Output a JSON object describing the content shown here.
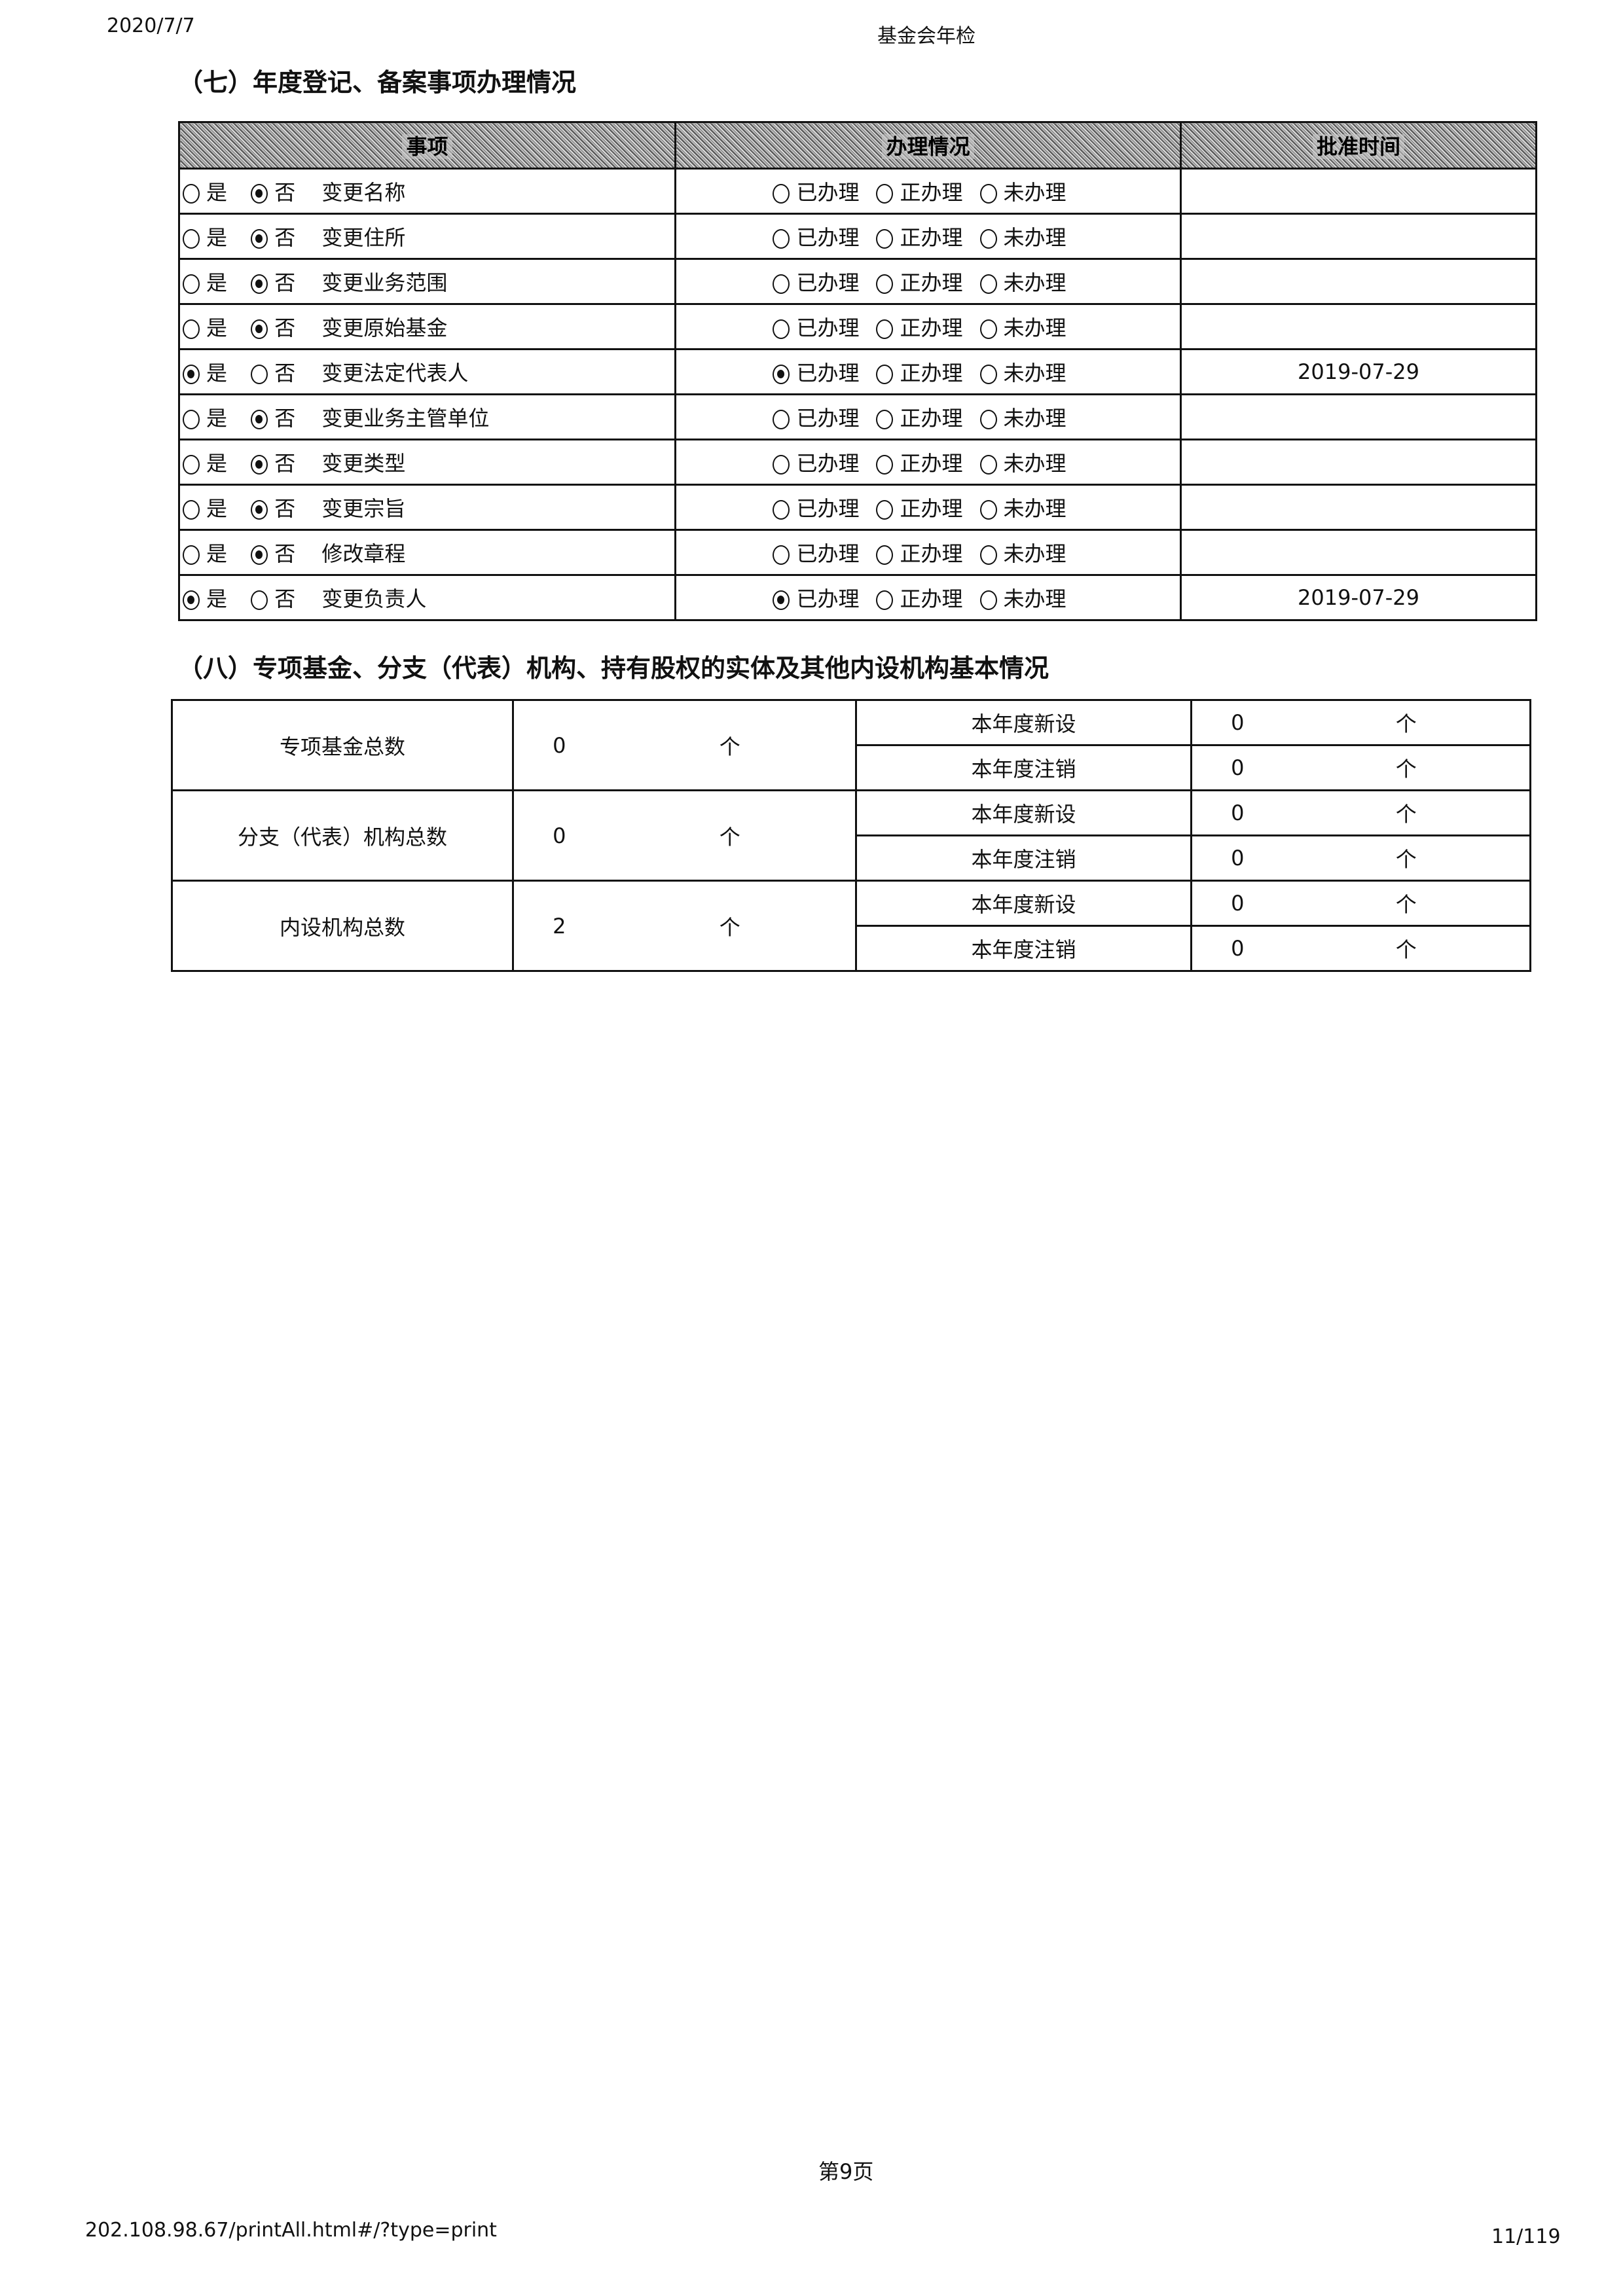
{
  "header": {
    "date": "2020/7/7",
    "title": "基金会年检"
  },
  "section7": {
    "title": "（七）年度登记、备案事项办理情况",
    "columns": [
      "事项",
      "办理情况",
      "批准时间"
    ],
    "yes_label": "是",
    "no_label": "否",
    "status_labels": [
      "已办理",
      "正办理",
      "未办理"
    ],
    "rows": [
      {
        "item": "变更名称",
        "changed": false,
        "status": null,
        "date": ""
      },
      {
        "item": "变更住所",
        "changed": false,
        "status": null,
        "date": ""
      },
      {
        "item": "变更业务范围",
        "changed": false,
        "status": null,
        "date": ""
      },
      {
        "item": "变更原始基金",
        "changed": false,
        "status": null,
        "date": ""
      },
      {
        "item": "变更法定代表人",
        "changed": true,
        "status": "已办理",
        "date": "2019-07-29"
      },
      {
        "item": "变更业务主管单位",
        "changed": false,
        "status": null,
        "date": ""
      },
      {
        "item": "变更类型",
        "changed": false,
        "status": null,
        "date": ""
      },
      {
        "item": "变更宗旨",
        "changed": false,
        "status": null,
        "date": ""
      },
      {
        "item": "修改章程",
        "changed": false,
        "status": null,
        "date": ""
      },
      {
        "item": "变更负责人",
        "changed": true,
        "status": "已办理",
        "date": "2019-07-29"
      }
    ]
  },
  "section8": {
    "title": "（八）专项基金、分支（代表）机构、持有股权的实体及其他内设机构基本情况",
    "unit": "个",
    "groups": [
      {
        "label": "专项基金总数",
        "total": "0",
        "new_label": "本年度新设",
        "new": "0",
        "cancel_label": "本年度注销",
        "cancel": "0"
      },
      {
        "label": "分支（代表）机构总数",
        "total": "0",
        "new_label": "本年度新设",
        "new": "0",
        "cancel_label": "本年度注销",
        "cancel": "0"
      },
      {
        "label": "内设机构总数",
        "total": "2",
        "new_label": "本年度新设",
        "new": "0",
        "cancel_label": "本年度注销",
        "cancel": "0"
      }
    ]
  },
  "footer": {
    "page": "第9页",
    "url": "202.108.98.67/printAll.html#/?type=print",
    "count": "11/119"
  }
}
